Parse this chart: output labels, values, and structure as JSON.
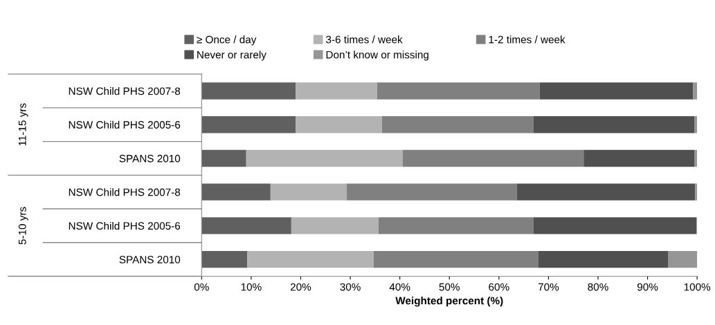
{
  "chart_data": {
    "type": "bar",
    "orientation": "horizontal",
    "stacked": true,
    "categories": [
      "NSW Child PHS 2007-8",
      "NSW Child PHS 2005-6",
      "SPANS 2010",
      "NSW Child PHS 2007-8",
      "NSW Child PHS 2005-6",
      "SPANS 2010"
    ],
    "series": [
      {
        "name": "≥ Once / day",
        "color": "#606060",
        "values": [
          19.0,
          19.0,
          9.0,
          13.9,
          18.1,
          9.2
        ]
      },
      {
        "name": "3-6 times / week",
        "color": "#b3b3b3",
        "values": [
          16.4,
          17.4,
          31.6,
          15.4,
          17.6,
          25.5
        ]
      },
      {
        "name": "1-2 times / week",
        "color": "#808080",
        "values": [
          32.8,
          30.6,
          36.5,
          34.3,
          31.3,
          33.2
        ]
      },
      {
        "name": "Never or rarely",
        "color": "#505050",
        "values": [
          31.0,
          32.5,
          22.4,
          36.0,
          32.9,
          26.3
        ]
      },
      {
        "name": "Don’t know or missing",
        "color": "#969696",
        "values": [
          0.8,
          0.5,
          0.5,
          0.4,
          0.1,
          5.8
        ]
      }
    ],
    "annotations": [
      "11-15 yrs",
      "5-10 yrs"
    ],
    "xlabel": "Weighted percent (%)",
    "xlim": [
      0,
      100
    ],
    "xticks": [
      {
        "value": 0,
        "label": "0%"
      },
      {
        "value": 10,
        "label": "10%"
      },
      {
        "value": 20,
        "label": "20%"
      },
      {
        "value": 30,
        "label": "30%"
      },
      {
        "value": 40,
        "label": "40%"
      },
      {
        "value": 50,
        "label": "50%"
      },
      {
        "value": 60,
        "label": "60%"
      },
      {
        "value": 70,
        "label": "70%"
      },
      {
        "value": 80,
        "label": "80%"
      },
      {
        "value": 90,
        "label": "90%"
      },
      {
        "value": 100,
        "label": "100%"
      }
    ],
    "legend": "top",
    "grid": false
  }
}
